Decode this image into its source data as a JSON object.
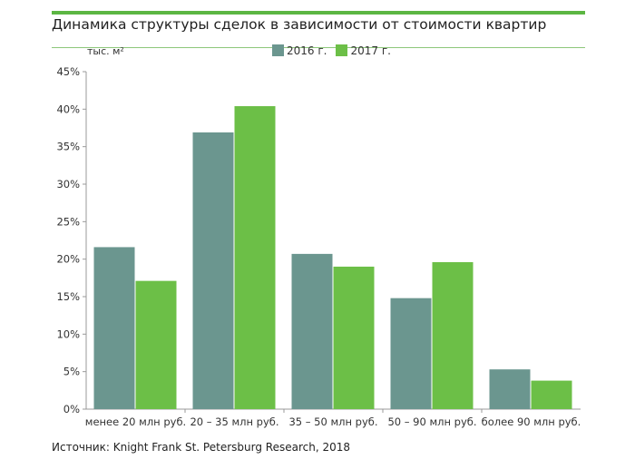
{
  "chart_data": {
    "type": "bar",
    "title": "Динамика структуры сделок в зависимости от стоимости квартир",
    "ylabel": "тыс. м²",
    "xlabel": "",
    "ylim": [
      0,
      45
    ],
    "yticks": [
      "0%",
      "5%",
      "10%",
      "15%",
      "20%",
      "25%",
      "30%",
      "35%",
      "40%",
      "45%"
    ],
    "categories": [
      "менее 20 млн руб.",
      "20 – 35 млн руб.",
      "35 – 50 млн руб.",
      "50 – 90 млн руб.",
      "более 90 млн руб."
    ],
    "series": [
      {
        "name": "2016 г.",
        "color": "#6b968f",
        "values": [
          21.6,
          36.9,
          20.7,
          14.8,
          5.3
        ]
      },
      {
        "name": "2017 г.",
        "color": "#6cbf47",
        "values": [
          17.1,
          40.4,
          19.0,
          19.6,
          3.8
        ]
      }
    ],
    "legend": "top",
    "grid": false,
    "source": "Источник: Knight Frank St. Petersburg Research, 2018"
  }
}
